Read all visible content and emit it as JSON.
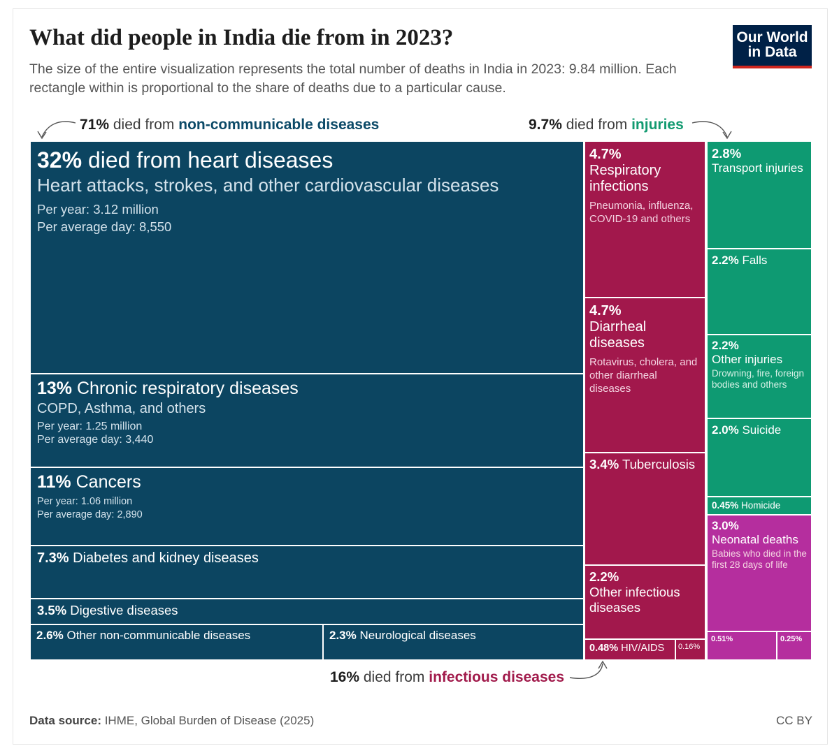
{
  "title": "What did people in India die from in 2023?",
  "subtitle": "The size of the entire visualization represents the total number of deaths in India in 2023: 9.84 million. Each rectangle within is proportional to the share of deaths due to a particular cause.",
  "logo": {
    "line1": "Our World",
    "line2": "in Data"
  },
  "callouts": {
    "ncd": {
      "pct": "71%",
      "text": " died from ",
      "group": "non-communicable diseases"
    },
    "inj": {
      "pct": "9.7%",
      "text": " died from ",
      "group": "injuries"
    },
    "inf": {
      "pct": "16%",
      "text": " died from ",
      "group": "infectious diseases"
    }
  },
  "footer": {
    "source_label": "Data source:",
    "source": " IHME, Global Burden of Disease (2025)",
    "license": "CC BY"
  },
  "colors": {
    "ncd": "#0c4561",
    "infectious": "#a2184c",
    "injuries": "#0e9a72",
    "neonatal": "#b52e9e"
  },
  "chart_data": {
    "type": "treemap",
    "title": "What did people in India die from in 2023?",
    "total_deaths": "9.84 million",
    "groups": [
      {
        "name": "non-communicable diseases",
        "share_pct": 71
      },
      {
        "name": "infectious diseases",
        "share_pct": 16
      },
      {
        "name": "injuries",
        "share_pct": 9.7
      }
    ],
    "cells": {
      "heart": {
        "pct": "32%",
        "label": " died from heart diseases",
        "desc": "Heart attacks, strokes, and other cardiovascular diseases",
        "per_year": "Per year: 3.12 million",
        "per_day": "Per average day: 8,550",
        "value": 32
      },
      "resp": {
        "pct": "13%",
        "label": " Chronic respiratory diseases",
        "desc": "COPD, Asthma, and others",
        "per_year": "Per year: 1.25 million",
        "per_day": "Per average day: 3,440",
        "value": 13
      },
      "cancer": {
        "pct": "11%",
        "label": " Cancers",
        "per_year": "Per year: 1.06 million",
        "per_day": "Per average day: 2,890",
        "value": 11
      },
      "diab": {
        "pct": "7.3%",
        "label": " Diabetes and kidney diseases",
        "value": 7.3
      },
      "dig": {
        "pct": "3.5%",
        "label": " Digestive diseases",
        "value": 3.5
      },
      "oncd": {
        "pct": "2.6%",
        "label": " Other non-communicable diseases",
        "value": 2.6
      },
      "neuro": {
        "pct": "2.3%",
        "label": " Neurological diseases",
        "value": 2.3
      },
      "respinf": {
        "pct": "4.7%",
        "label": "Respiratory infections",
        "desc": "Pneumonia, influenza, COVID-19 and others",
        "value": 4.7
      },
      "diar": {
        "pct": "4.7%",
        "label": "Diarrheal diseases",
        "desc": "Rotavirus, cholera, and other diarrheal diseases",
        "value": 4.7
      },
      "tb": {
        "pct": "3.4%",
        "label": " Tuberculosis",
        "value": 3.4
      },
      "oinf": {
        "pct": "2.2%",
        "label": "Other infectious diseases",
        "value": 2.2
      },
      "hiv": {
        "pct": "0.48%",
        "label": " HIV/AIDS",
        "value": 0.48
      },
      "inf016": {
        "pct": "0.16%",
        "value": 0.16
      },
      "transport": {
        "pct": "2.8%",
        "label": "Transport injuries",
        "value": 2.8
      },
      "falls": {
        "pct": "2.2%",
        "label": " Falls",
        "value": 2.2
      },
      "oinj": {
        "pct": "2.2%",
        "label": "Other injuries",
        "desc": "Drowning, fire, foreign bodies and others",
        "value": 2.2
      },
      "suicide": {
        "pct": "2.0%",
        "label": " Suicide",
        "value": 2.0
      },
      "homicide": {
        "pct": "0.45%",
        "label": " Homicide",
        "value": 0.45
      },
      "neonatal": {
        "pct": "3.0%",
        "label": "Neonatal deaths",
        "desc": "Babies who died in the first 28 days of life",
        "value": 3.0
      },
      "m051": {
        "pct": "0.51%",
        "value": 0.51
      },
      "m025": {
        "pct": "0.25%",
        "value": 0.25
      }
    }
  }
}
